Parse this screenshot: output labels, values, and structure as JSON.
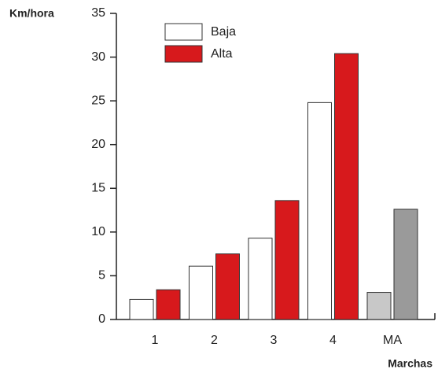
{
  "chart_data": {
    "type": "bar",
    "y_label": "Km/hora",
    "x_label": "Marchas",
    "categories": [
      "1",
      "2",
      "3",
      "4",
      "MA"
    ],
    "series": [
      {
        "name": "Baja",
        "color": "#ffffff",
        "colors": [
          "#ffffff",
          "#ffffff",
          "#ffffff",
          "#ffffff",
          "#c8c8c8"
        ],
        "values": [
          2.3,
          6.1,
          9.3,
          24.8,
          3.1
        ]
      },
      {
        "name": "Alta",
        "color": "#d7191c",
        "colors": [
          "#d7191c",
          "#d7191c",
          "#d7191c",
          "#d7191c",
          "#9a9a9a"
        ],
        "values": [
          3.4,
          7.5,
          13.6,
          30.4,
          12.6
        ]
      }
    ],
    "ylim": [
      0,
      35
    ],
    "yticks": [
      0,
      5,
      10,
      15,
      20,
      25,
      30,
      35
    ],
    "legend": "top-left"
  }
}
